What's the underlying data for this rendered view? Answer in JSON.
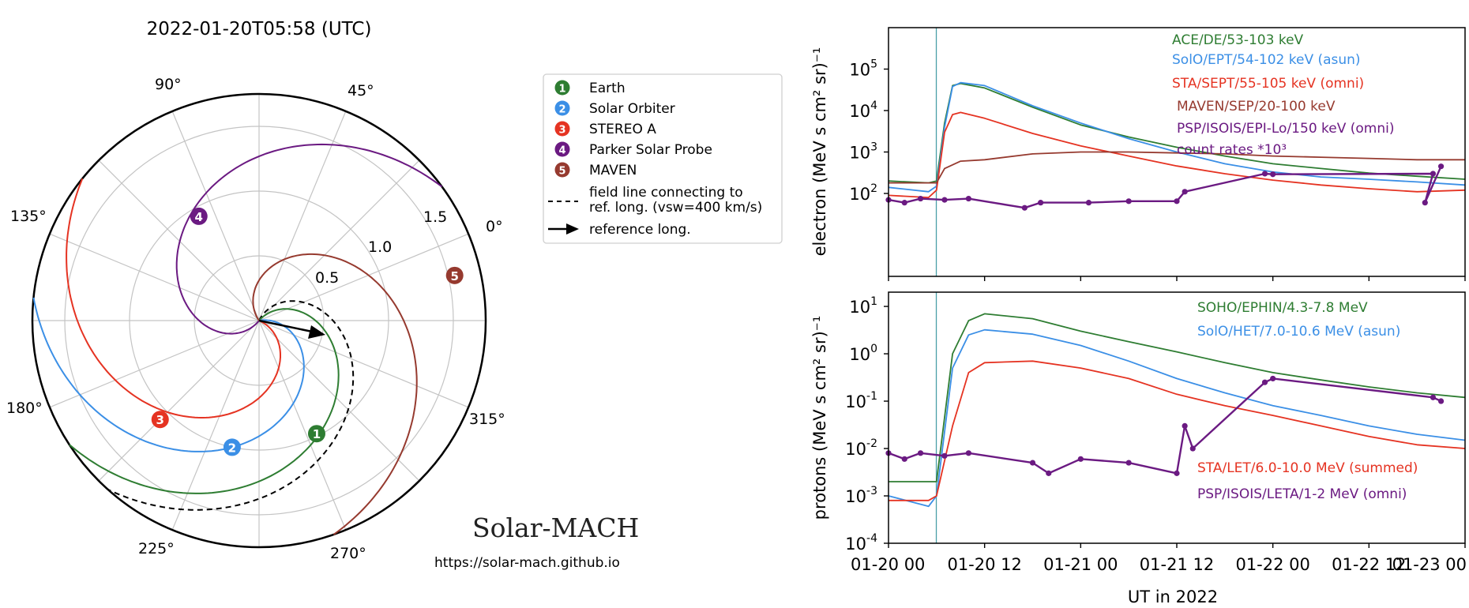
{
  "polar": {
    "title": "2022-01-20T05:58 (UTC)",
    "angle_labels": [
      "0°",
      "45°",
      "90°",
      "135°",
      "180°",
      "225°",
      "270°",
      "315°"
    ],
    "radial_labels": [
      "0.5",
      "1.0",
      "1.5"
    ],
    "rlim": [
      0,
      1.75
    ],
    "legend": {
      "items": [
        {
          "num": "1",
          "label": "Earth",
          "color": "#2e7d32"
        },
        {
          "num": "2",
          "label": "Solar Orbiter",
          "color": "#3b8fe6"
        },
        {
          "num": "3",
          "label": "STEREO A",
          "color": "#e53322"
        },
        {
          "num": "4",
          "label": "Parker Solar Probe",
          "color": "#6b1a82"
        },
        {
          "num": "5",
          "label": "MAVEN",
          "color": "#963a2f"
        }
      ],
      "fieldline_label_1": "field line connecting to",
      "fieldline_label_2": "ref. long. (vsw=400 km/s)",
      "arrow_label": "reference long."
    },
    "bodies": [
      {
        "num": "1",
        "color": "#2e7d32",
        "r": 0.98,
        "theta_deg": -63
      },
      {
        "num": "2",
        "color": "#3b8fe6",
        "r": 1.0,
        "theta_deg": -102
      },
      {
        "num": "3",
        "color": "#e53322",
        "r": 1.08,
        "theta_deg": -135
      },
      {
        "num": "4",
        "color": "#6b1a82",
        "r": 0.93,
        "theta_deg": 120
      },
      {
        "num": "5",
        "color": "#963a2f",
        "r": 1.55,
        "theta_deg": 13
      }
    ],
    "brand": "Solar-MACH",
    "url": "https://solar-mach.github.io"
  },
  "electron_panel": {
    "ylabel": "electron (MeV s cm² sr)⁻¹",
    "yticks": [
      {
        "base": "10",
        "exp": "5",
        "v": 5
      },
      {
        "base": "10",
        "exp": "4",
        "v": 4
      },
      {
        "base": "10",
        "exp": "3",
        "v": 3
      },
      {
        "base": "10",
        "exp": "2",
        "v": 2
      }
    ],
    "legend": [
      {
        "label": "ACE/DE/53-103 keV",
        "color": "#2e7d32"
      },
      {
        "label": "SolO/EPT/54-102 keV (asun)",
        "color": "#3b8fe6"
      },
      {
        "label": "STA/SEPT/55-105 keV (omni)",
        "color": "#e53322"
      },
      {
        "label": "MAVEN/SEP/20-100 keV",
        "color": "#963a2f"
      },
      {
        "label": "PSP/ISOIS/EPI-Lo/150 keV (omni)",
        "color": "#6b1a82"
      },
      {
        "label": "count rates *10³",
        "color": "#6b1a82"
      }
    ]
  },
  "proton_panel": {
    "ylabel": "protons (MeV s cm² sr)⁻¹",
    "yticks": [
      {
        "base": "10",
        "exp": "1",
        "v": 1
      },
      {
        "base": "10",
        "exp": "0",
        "v": 0
      },
      {
        "base": "10",
        "exp": "-1",
        "v": -1
      },
      {
        "base": "10",
        "exp": "-2",
        "v": -2
      },
      {
        "base": "10",
        "exp": "-3",
        "v": -3
      },
      {
        "base": "10",
        "exp": "-4",
        "v": -4
      }
    ],
    "legend_top": [
      {
        "label": "SOHO/EPHIN/4.3-7.8 MeV",
        "color": "#2e7d32"
      },
      {
        "label": "SolO/HET/7.0-10.6 MeV (asun)",
        "color": "#3b8fe6"
      }
    ],
    "legend_bottom": [
      {
        "label": "STA/LET/6.0-10.0 MeV (summed)",
        "color": "#e53322"
      },
      {
        "label": "PSP/ISOIS/LETA/1-2 MeV (omni)",
        "color": "#6b1a82"
      }
    ]
  },
  "xaxis": {
    "label": "UT in 2022",
    "ticks": [
      "01-20 00",
      "01-20 12",
      "01-21 00",
      "01-21 12",
      "01-22 00",
      "01-22 12",
      "01-23 00"
    ],
    "event_line_hours": 5.97
  },
  "chart_data": [
    {
      "type": "line",
      "title": "",
      "ylabel": "electron (MeV s cm² sr)⁻¹",
      "xlabel": "UT in 2022",
      "yscale": "log",
      "ylim": [
        1,
        1000000
      ],
      "x_unit": "hours since 2022-01-20 00:00 UT",
      "series": [
        {
          "name": "ACE/DE/53-103 keV",
          "color": "#2e7d32",
          "points": [
            [
              0,
              200
            ],
            [
              5,
              180
            ],
            [
              6,
              200
            ],
            [
              7,
              5000
            ],
            [
              8,
              40000
            ],
            [
              9,
              45000
            ],
            [
              12,
              35000
            ],
            [
              18,
              12000
            ],
            [
              24,
              4500
            ],
            [
              30,
              2300
            ],
            [
              36,
              1300
            ],
            [
              42,
              800
            ],
            [
              48,
              520
            ],
            [
              54,
              400
            ],
            [
              60,
              310
            ],
            [
              66,
              260
            ],
            [
              72,
              220
            ]
          ]
        },
        {
          "name": "SolO/EPT/54-102 keV (asun)",
          "color": "#3b8fe6",
          "points": [
            [
              0,
              140
            ],
            [
              5,
              110
            ],
            [
              6,
              150
            ],
            [
              7,
              4000
            ],
            [
              8,
              38000
            ],
            [
              9,
              47000
            ],
            [
              12,
              40000
            ],
            [
              18,
              13000
            ],
            [
              24,
              5000
            ],
            [
              30,
              2100
            ],
            [
              36,
              1000
            ],
            [
              42,
              520
            ],
            [
              48,
              330
            ],
            [
              54,
              250
            ],
            [
              60,
              220
            ],
            [
              66,
              190
            ],
            [
              72,
              160
            ]
          ]
        },
        {
          "name": "STA/SEPT/55-105 keV (omni)",
          "color": "#e53322",
          "points": [
            [
              0,
              90
            ],
            [
              5,
              80
            ],
            [
              6,
              120
            ],
            [
              7,
              3000
            ],
            [
              8,
              8000
            ],
            [
              9,
              9000
            ],
            [
              12,
              6500
            ],
            [
              18,
              2800
            ],
            [
              24,
              1400
            ],
            [
              30,
              800
            ],
            [
              36,
              460
            ],
            [
              42,
              300
            ],
            [
              48,
              210
            ],
            [
              54,
              160
            ],
            [
              60,
              130
            ],
            [
              66,
              110
            ],
            [
              72,
              120
            ]
          ]
        },
        {
          "name": "MAVEN/SEP/20-100 keV",
          "color": "#963a2f",
          "points": [
            [
              0,
              180
            ],
            [
              6,
              180
            ],
            [
              7,
              400
            ],
            [
              9,
              600
            ],
            [
              12,
              650
            ],
            [
              18,
              900
            ],
            [
              24,
              1000
            ],
            [
              30,
              1000
            ],
            [
              36,
              950
            ],
            [
              42,
              900
            ],
            [
              48,
              800
            ],
            [
              54,
              750
            ],
            [
              60,
              700
            ],
            [
              66,
              650
            ],
            [
              72,
              650
            ]
          ]
        },
        {
          "name": "PSP/ISOIS/EPI-Lo/150 keV (omni) count rates *10³",
          "color": "#6b1a82",
          "points": [
            [
              0,
              70
            ],
            [
              2,
              60
            ],
            [
              4,
              75
            ],
            [
              7,
              70
            ],
            [
              10,
              75
            ],
            [
              17,
              45
            ],
            [
              19,
              60
            ],
            [
              25,
              60
            ],
            [
              30,
              65
            ],
            [
              36,
              65
            ],
            [
              37,
              110
            ],
            [
              47,
              300
            ],
            [
              48,
              290
            ],
            [
              68,
              300
            ],
            [
              67,
              60
            ],
            [
              69,
              450
            ]
          ]
        }
      ]
    },
    {
      "type": "line",
      "title": "",
      "ylabel": "protons (MeV s cm² sr)⁻¹",
      "xlabel": "UT in 2022",
      "yscale": "log",
      "ylim": [
        0.0001,
        20
      ],
      "x_unit": "hours since 2022-01-20 00:00 UT",
      "series": [
        {
          "name": "SOHO/EPHIN/4.3-7.8 MeV",
          "color": "#2e7d32",
          "points": [
            [
              0,
              0.002
            ],
            [
              5,
              0.002
            ],
            [
              6,
              0.002
            ],
            [
              8,
              1
            ],
            [
              10,
              5
            ],
            [
              12,
              7
            ],
            [
              18,
              5.5
            ],
            [
              24,
              3
            ],
            [
              30,
              1.8
            ],
            [
              36,
              1.1
            ],
            [
              42,
              0.65
            ],
            [
              48,
              0.4
            ],
            [
              54,
              0.28
            ],
            [
              60,
              0.2
            ],
            [
              66,
              0.15
            ],
            [
              72,
              0.12
            ]
          ]
        },
        {
          "name": "SolO/HET/7.0-10.6 MeV (asun)",
          "color": "#3b8fe6",
          "points": [
            [
              0,
              0.001
            ],
            [
              5,
              0.0006
            ],
            [
              6,
              0.001
            ],
            [
              8,
              0.5
            ],
            [
              10,
              2.5
            ],
            [
              12,
              3.2
            ],
            [
              18,
              2.6
            ],
            [
              24,
              1.5
            ],
            [
              30,
              0.7
            ],
            [
              36,
              0.3
            ],
            [
              42,
              0.15
            ],
            [
              48,
              0.08
            ],
            [
              54,
              0.05
            ],
            [
              60,
              0.03
            ],
            [
              66,
              0.02
            ],
            [
              72,
              0.015
            ]
          ]
        },
        {
          "name": "STA/LET/6.0-10.0 MeV (summed)",
          "color": "#e53322",
          "points": [
            [
              0,
              0.0008
            ],
            [
              5,
              0.0008
            ],
            [
              6,
              0.001
            ],
            [
              8,
              0.03
            ],
            [
              10,
              0.4
            ],
            [
              12,
              0.65
            ],
            [
              18,
              0.7
            ],
            [
              24,
              0.5
            ],
            [
              30,
              0.3
            ],
            [
              36,
              0.14
            ],
            [
              42,
              0.08
            ],
            [
              48,
              0.05
            ],
            [
              54,
              0.03
            ],
            [
              60,
              0.018
            ],
            [
              66,
              0.012
            ],
            [
              72,
              0.01
            ]
          ]
        },
        {
          "name": "PSP/ISOIS/LETA/1-2 MeV (omni)",
          "color": "#6b1a82",
          "points": [
            [
              0,
              0.008
            ],
            [
              2,
              0.006
            ],
            [
              4,
              0.008
            ],
            [
              7,
              0.007
            ],
            [
              10,
              0.008
            ],
            [
              18,
              0.005
            ],
            [
              20,
              0.003
            ],
            [
              24,
              0.006
            ],
            [
              30,
              0.005
            ],
            [
              36,
              0.003
            ],
            [
              37,
              0.03
            ],
            [
              38,
              0.01
            ],
            [
              47,
              0.25
            ],
            [
              48,
              0.3
            ],
            [
              68,
              0.12
            ],
            [
              69,
              0.1
            ]
          ]
        }
      ]
    }
  ]
}
